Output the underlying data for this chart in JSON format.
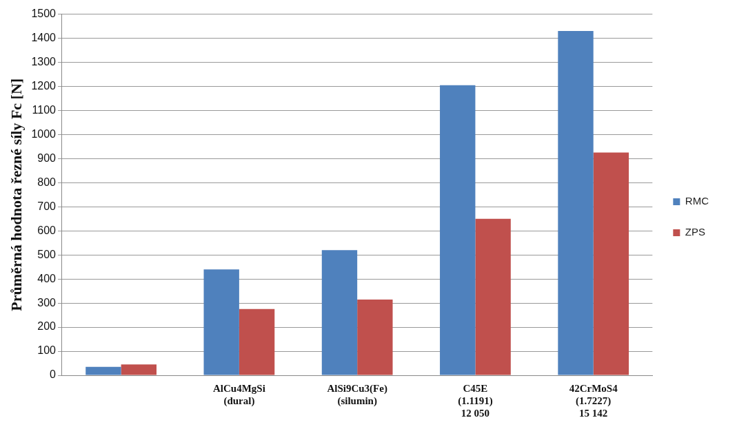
{
  "chart_data": {
    "type": "bar",
    "ylabel": "Průměrná hodnota řezné síly Fc [N]",
    "categories": [
      null,
      "AlCu4MgSi\n(dural)",
      "AlSi9Cu3(Fe)\n(silumin)",
      "C45E\n(1.1191)\n12 050",
      "42CrMoS4\n(1.7227)\n15 142"
    ],
    "series": [
      {
        "name": "RMC",
        "color": "#4f81bd",
        "values": [
          35,
          440,
          520,
          1205,
          1430
        ]
      },
      {
        "name": "ZPS",
        "color": "#c0504d",
        "values": [
          45,
          275,
          315,
          650,
          925
        ]
      }
    ],
    "ylim": [
      0,
      1500
    ],
    "yticks": [
      0,
      100,
      200,
      300,
      400,
      500,
      600,
      700,
      800,
      900,
      1000,
      1100,
      1200,
      1300,
      1400,
      1500
    ],
    "grid": "y",
    "legend": "right"
  }
}
